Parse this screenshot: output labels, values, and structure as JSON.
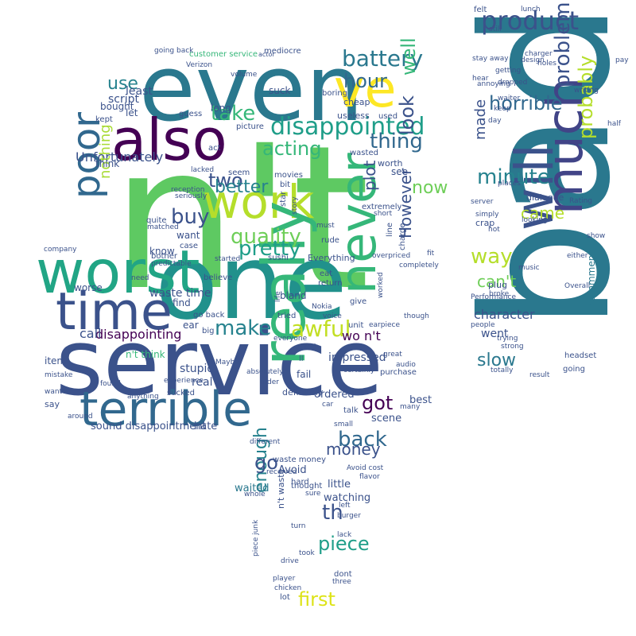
{
  "words": [
    {
      "text": "n't",
      "color": "#5ec962"
    },
    {
      "text": "one",
      "color": "#21918c"
    },
    {
      "text": "service",
      "color": "#3b528b"
    },
    {
      "text": "even",
      "color": "#2a788e"
    },
    {
      "text": "bad",
      "color": "#2a788e"
    },
    {
      "text": "also",
      "color": "#440154"
    },
    {
      "text": "work",
      "color": "#b5de2b"
    },
    {
      "text": "worst",
      "color": "#21a585"
    },
    {
      "text": "time",
      "color": "#3b528b"
    },
    {
      "text": "terrible",
      "color": "#31688e"
    },
    {
      "text": "really",
      "color": "#35b779"
    },
    {
      "text": "never",
      "color": "#35b779"
    },
    {
      "text": "much",
      "color": "#414487"
    },
    {
      "text": "will",
      "color": "#3b528b"
    },
    {
      "text": "ve",
      "color": "#fde725"
    },
    {
      "text": "poor",
      "color": "#31688e"
    },
    {
      "text": "disappointed",
      "color": "#1f9e89"
    },
    {
      "text": "battery",
      "color": "#2a788e"
    },
    {
      "text": "product",
      "color": "#3b528b"
    },
    {
      "text": "horrible",
      "color": "#31688e"
    },
    {
      "text": "problem",
      "color": "#3b528b"
    },
    {
      "text": "probably",
      "color": "#b5de2b"
    },
    {
      "text": "minute",
      "color": "#26828e"
    },
    {
      "text": "way",
      "color": "#b5de2b"
    },
    {
      "text": "awful",
      "color": "#c2df23"
    },
    {
      "text": "quality",
      "color": "#6ece58"
    },
    {
      "text": "pretty",
      "color": "#1f9e89"
    },
    {
      "text": "make",
      "color": "#26828e"
    },
    {
      "text": "take",
      "color": "#35b779"
    },
    {
      "text": "acting",
      "color": "#35b779"
    },
    {
      "text": "thing",
      "color": "#31688e"
    },
    {
      "text": "look",
      "color": "#3b528b"
    },
    {
      "text": "well",
      "color": "#35b779"
    },
    {
      "text": "hour",
      "color": "#31688e"
    },
    {
      "text": "two",
      "color": "#3b528b"
    },
    {
      "text": "better",
      "color": "#26828e"
    },
    {
      "text": "buy",
      "color": "#3b528b"
    },
    {
      "text": "use",
      "color": "#26828e"
    },
    {
      "text": "back",
      "color": "#31688e"
    },
    {
      "text": "money",
      "color": "#3b528b"
    },
    {
      "text": "got",
      "color": "#440154"
    },
    {
      "text": "However",
      "color": "#3b528b"
    },
    {
      "text": "enough",
      "color": "#26828e"
    },
    {
      "text": "piece",
      "color": "#1f9e89"
    },
    {
      "text": "th",
      "color": "#3b528b"
    },
    {
      "text": "first",
      "color": "#dde318"
    },
    {
      "text": "go",
      "color": "#3b528b"
    },
    {
      "text": "came",
      "color": "#b5de2b"
    },
    {
      "text": "slow",
      "color": "#2a788e"
    },
    {
      "text": "character",
      "color": "#3b528b"
    },
    {
      "text": "can't",
      "color": "#6ece58"
    },
    {
      "text": "made",
      "color": "#3b528b"
    },
    {
      "text": "plot",
      "color": "#3b528b"
    },
    {
      "text": "now",
      "color": "#6ece58"
    },
    {
      "text": "Unfortunately",
      "color": "#3b528b"
    },
    {
      "text": "disappointing",
      "color": "#440154"
    },
    {
      "text": "waste time",
      "color": "#3b528b"
    },
    {
      "text": "nothing",
      "color": "#a8db34"
    },
    {
      "text": "call",
      "color": "#3b528b"
    },
    {
      "text": "wo n't",
      "color": "#440154"
    },
    {
      "text": "went",
      "color": "#3b528b"
    },
    {
      "text": "recommend",
      "color": "#2a788e"
    },
    {
      "text": "script",
      "color": "#3b528b"
    },
    {
      "text": "least",
      "color": "#3b528b"
    },
    {
      "text": "bought",
      "color": "#3b528b"
    },
    {
      "text": "sound disappointment",
      "color": "#3b528b"
    },
    {
      "text": "hate",
      "color": "#3b528b"
    },
    {
      "text": "real",
      "color": "#3b528b"
    },
    {
      "text": "stupid",
      "color": "#3b528b"
    },
    {
      "text": "impressed",
      "color": "#3b528b"
    },
    {
      "text": "ordered",
      "color": "#3b528b"
    },
    {
      "text": "scene",
      "color": "#3b528b"
    },
    {
      "text": "best",
      "color": "#3b528b"
    },
    {
      "text": "waited",
      "color": "#2a788e"
    },
    {
      "text": "Avoid",
      "color": "#3b528b"
    },
    {
      "text": "little",
      "color": "#3b528b"
    },
    {
      "text": "watching",
      "color": "#3b528b"
    },
    {
      "text": "lot",
      "color": "#3b528b"
    },
    {
      "text": "worse",
      "color": "#3b528b"
    },
    {
      "text": "item",
      "color": "#3b528b"
    },
    {
      "text": "find",
      "color": "#3b528b"
    },
    {
      "text": "ear",
      "color": "#3b528b"
    },
    {
      "text": "know",
      "color": "#3b528b"
    },
    {
      "text": "want",
      "color": "#3b528b"
    },
    {
      "text": "sucked",
      "color": "#3b528b"
    },
    {
      "text": "fail",
      "color": "#3b528b"
    },
    {
      "text": "definitely",
      "color": "#3b528b"
    },
    {
      "text": "sure",
      "color": "#3b528b"
    },
    {
      "text": "headset",
      "color": "#3b528b"
    },
    {
      "text": "going",
      "color": "#3b528b"
    },
    {
      "text": "case",
      "color": "#3b528b"
    },
    {
      "text": "big",
      "color": "#3b528b"
    },
    {
      "text": "think",
      "color": "#3b528b"
    },
    {
      "text": "say",
      "color": "#3b528b"
    },
    {
      "text": "Everything",
      "color": "#3b528b"
    },
    {
      "text": "worth",
      "color": "#3b528b"
    },
    {
      "text": "see",
      "color": "#3b528b"
    },
    {
      "text": "bit",
      "color": "#3b528b"
    },
    {
      "text": "star",
      "color": "#3b528b"
    },
    {
      "text": "charge",
      "color": "#3b528b"
    },
    {
      "text": "extremely",
      "color": "#3b528b"
    },
    {
      "text": "customer service",
      "color": "#35b779"
    },
    {
      "text": "mediocre",
      "color": "#3b528b"
    },
    {
      "text": "actor",
      "color": "#3b528b"
    },
    {
      "text": "felt",
      "color": "#3b528b"
    },
    {
      "text": "lunch",
      "color": "#3b528b"
    },
    {
      "text": "charger",
      "color": "#3b528b"
    },
    {
      "text": "still",
      "color": "#3b528b"
    },
    {
      "text": "design",
      "color": "#3b528b"
    },
    {
      "text": "holes",
      "color": "#3b528b"
    },
    {
      "text": "stay away",
      "color": "#3b528b"
    },
    {
      "text": "getting",
      "color": "#3b528b"
    },
    {
      "text": "hear",
      "color": "#3b528b"
    },
    {
      "text": "annoying",
      "color": "#3b528b"
    },
    {
      "text": "keep",
      "color": "#3b528b"
    },
    {
      "text": "day",
      "color": "#3b528b"
    },
    {
      "text": "half",
      "color": "#3b528b"
    },
    {
      "text": "pay",
      "color": "#3b528b"
    },
    {
      "text": "writing",
      "color": "#3b528b"
    },
    {
      "text": "dialogue",
      "color": "#3b528b"
    },
    {
      "text": "crap",
      "color": "#3b528b"
    },
    {
      "text": "plug",
      "color": "#3b528b"
    },
    {
      "text": "simply",
      "color": "#3b528b"
    },
    {
      "text": "hot",
      "color": "#3b528b"
    },
    {
      "text": "broke",
      "color": "#3b528b"
    },
    {
      "text": "music",
      "color": "#3b528b"
    },
    {
      "text": "either",
      "color": "#3b528b"
    },
    {
      "text": "Overall",
      "color": "#3b528b"
    },
    {
      "text": "trying",
      "color": "#3b528b"
    },
    {
      "text": "strong",
      "color": "#3b528b"
    },
    {
      "text": "people",
      "color": "#3b528b"
    },
    {
      "text": "totally",
      "color": "#3b528b"
    },
    {
      "text": "result",
      "color": "#3b528b"
    },
    {
      "text": "show",
      "color": "#3b528b"
    },
    {
      "text": "Rating",
      "color": "#3b528b"
    },
    {
      "text": "server",
      "color": "#3b528b"
    },
    {
      "text": "looking",
      "color": "#3b528b"
    },
    {
      "text": "Performance",
      "color": "#3b528b"
    },
    {
      "text": "places",
      "color": "#3b528b"
    },
    {
      "text": "dropped",
      "color": "#3b528b"
    },
    {
      "text": "waiter",
      "color": "#3b528b"
    },
    {
      "text": "boring",
      "color": "#3b528b"
    },
    {
      "text": "suck",
      "color": "#3b528b"
    },
    {
      "text": "useless",
      "color": "#3b528b"
    },
    {
      "text": "cheap",
      "color": "#3b528b"
    },
    {
      "text": "used",
      "color": "#3b528b"
    },
    {
      "text": "wasted",
      "color": "#3b528b"
    },
    {
      "text": "movies",
      "color": "#3b528b"
    },
    {
      "text": "picture",
      "color": "#3b528b"
    },
    {
      "text": "long",
      "color": "#3b528b"
    },
    {
      "text": "guess",
      "color": "#3b528b"
    },
    {
      "text": "kept",
      "color": "#3b528b"
    },
    {
      "text": "let",
      "color": "#3b528b"
    },
    {
      "text": "act",
      "color": "#3b528b"
    },
    {
      "text": "seem",
      "color": "#3b528b"
    },
    {
      "text": "lacked",
      "color": "#3b528b"
    },
    {
      "text": "reception",
      "color": "#3b528b"
    },
    {
      "text": "seriously",
      "color": "#3b528b"
    },
    {
      "text": "quite",
      "color": "#3b528b"
    },
    {
      "text": "matched",
      "color": "#3b528b"
    },
    {
      "text": "bother",
      "color": "#3b528b"
    },
    {
      "text": "predictable",
      "color": "#3b528b"
    },
    {
      "text": "believe",
      "color": "#3b528b"
    },
    {
      "text": "started",
      "color": "#3b528b"
    },
    {
      "text": "sushi",
      "color": "#3b528b"
    },
    {
      "text": "bland",
      "color": "#3b528b"
    },
    {
      "text": "eat",
      "color": "#3b528b"
    },
    {
      "text": "return",
      "color": "#3b528b"
    },
    {
      "text": "rude",
      "color": "#3b528b"
    },
    {
      "text": "must",
      "color": "#3b528b"
    },
    {
      "text": "line",
      "color": "#3b528b"
    },
    {
      "text": "completely",
      "color": "#3b528b"
    },
    {
      "text": "overpriced",
      "color": "#3b528b"
    },
    {
      "text": "fit",
      "color": "#3b528b"
    },
    {
      "text": "give",
      "color": "#3b528b"
    },
    {
      "text": "unit",
      "color": "#3b528b"
    },
    {
      "text": "earpiece",
      "color": "#3b528b"
    },
    {
      "text": "though",
      "color": "#3b528b"
    },
    {
      "text": "tried",
      "color": "#3b528b"
    },
    {
      "text": "everyone",
      "color": "#3b528b"
    },
    {
      "text": "asked",
      "color": "#3b528b"
    },
    {
      "text": "ll",
      "color": "#3b528b"
    },
    {
      "text": "absolutely",
      "color": "#3b528b"
    },
    {
      "text": "order",
      "color": "#3b528b"
    },
    {
      "text": "Maybe",
      "color": "#3b528b"
    },
    {
      "text": "experience",
      "color": "#3b528b"
    },
    {
      "text": "anything",
      "color": "#3b528b"
    },
    {
      "text": "found",
      "color": "#3b528b"
    },
    {
      "text": "n't think",
      "color": "#35b779"
    },
    {
      "text": "go back",
      "color": "#3b528b"
    },
    {
      "text": "company",
      "color": "#3b528b"
    },
    {
      "text": "need",
      "color": "#3b528b"
    },
    {
      "text": "wanted",
      "color": "#3b528b"
    },
    {
      "text": "around",
      "color": "#3b528b"
    },
    {
      "text": "mistake",
      "color": "#3b528b"
    },
    {
      "text": "purchase",
      "color": "#3b528b"
    },
    {
      "text": "great",
      "color": "#3b528b"
    },
    {
      "text": "certainly",
      "color": "#3b528b"
    },
    {
      "text": "audio",
      "color": "#3b528b"
    },
    {
      "text": "many",
      "color": "#3b528b"
    },
    {
      "text": "talk",
      "color": "#3b528b"
    },
    {
      "text": "small",
      "color": "#3b528b"
    },
    {
      "text": "car",
      "color": "#3b528b"
    },
    {
      "text": "waste money",
      "color": "#3b528b"
    },
    {
      "text": "hard",
      "color": "#3b528b"
    },
    {
      "text": "received",
      "color": "#3b528b"
    },
    {
      "text": "different",
      "color": "#3b528b"
    },
    {
      "text": "Avoid cost",
      "color": "#3b528b"
    },
    {
      "text": "flavor",
      "color": "#3b528b"
    },
    {
      "text": "thought",
      "color": "#3b528b"
    },
    {
      "text": "left",
      "color": "#3b528b"
    },
    {
      "text": "burger",
      "color": "#3b528b"
    },
    {
      "text": "lack",
      "color": "#3b528b"
    },
    {
      "text": "turn",
      "color": "#3b528b"
    },
    {
      "text": "took",
      "color": "#3b528b"
    },
    {
      "text": "drive",
      "color": "#3b528b"
    },
    {
      "text": "dont",
      "color": "#3b528b"
    },
    {
      "text": "three",
      "color": "#3b528b"
    },
    {
      "text": "player",
      "color": "#3b528b"
    },
    {
      "text": "chicken",
      "color": "#3b528b"
    },
    {
      "text": "whole",
      "color": "#3b528b"
    },
    {
      "text": "piece junk",
      "color": "#3b528b"
    },
    {
      "text": "n't waste",
      "color": "#3b528b"
    },
    {
      "text": "short",
      "color": "#3b528b"
    },
    {
      "text": "worked",
      "color": "#3b528b"
    },
    {
      "text": "Verizon",
      "color": "#3b528b"
    },
    {
      "text": "going back",
      "color": "#3b528b"
    },
    {
      "text": "volume",
      "color": "#3b528b"
    },
    {
      "text": "Nokia",
      "color": "#3b528b"
    },
    {
      "text": "voice",
      "color": "#3b528b"
    },
    {
      "text": "story",
      "color": "#3b528b"
    },
    {
      "text": "life",
      "color": "#3b528b"
    }
  ]
}
